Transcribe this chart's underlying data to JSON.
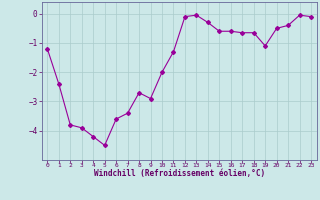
{
  "x": [
    0,
    1,
    2,
    3,
    4,
    5,
    6,
    7,
    8,
    9,
    10,
    11,
    12,
    13,
    14,
    15,
    16,
    17,
    18,
    19,
    20,
    21,
    22,
    23
  ],
  "y": [
    -1.2,
    -2.4,
    -3.8,
    -3.9,
    -4.2,
    -4.5,
    -3.6,
    -3.4,
    -2.7,
    -2.9,
    -2.0,
    -1.3,
    -0.1,
    -0.05,
    -0.3,
    -0.6,
    -0.6,
    -0.65,
    -0.65,
    -1.1,
    -0.5,
    -0.4,
    -0.05,
    -0.1
  ],
  "line_color": "#990099",
  "marker": "D",
  "marker_size": 2,
  "bg_color": "#cce8e8",
  "grid_color": "#aacccc",
  "xlabel": "Windchill (Refroidissement éolien,°C)",
  "xlabel_color": "#660066",
  "tick_color": "#660066",
  "spine_color": "#666699",
  "xlim": [
    -0.5,
    23.5
  ],
  "ylim": [
    -5.0,
    0.4
  ],
  "yticks": [
    0,
    -1,
    -2,
    -3,
    -4
  ],
  "xticks": [
    0,
    1,
    2,
    3,
    4,
    5,
    6,
    7,
    8,
    9,
    10,
    11,
    12,
    13,
    14,
    15,
    16,
    17,
    18,
    19,
    20,
    21,
    22,
    23
  ],
  "xlabel_fontsize": 5.5,
  "xtick_fontsize": 4.5,
  "ytick_fontsize": 5.5
}
